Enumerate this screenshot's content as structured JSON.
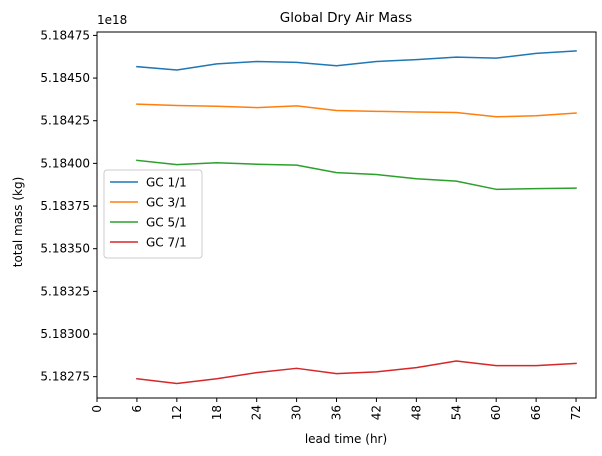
{
  "chart_data": {
    "type": "line",
    "title": "Global Dry Air Mass",
    "xlabel": "lead time (hr)",
    "ylabel": "total mass (kg)",
    "y_offset_label": "1e18",
    "x_ticks": [
      "0",
      "6",
      "12",
      "18",
      "24",
      "30",
      "36",
      "42",
      "48",
      "54",
      "60",
      "66",
      "72"
    ],
    "y_ticks": [
      "5.18275",
      "5.18300",
      "5.18325",
      "5.18350",
      "5.18375",
      "5.18400",
      "5.18425",
      "5.18450",
      "5.18475"
    ],
    "xlim": [
      0,
      75
    ],
    "ylim": [
      5.182625,
      5.18477
    ],
    "x": [
      6,
      12,
      18,
      24,
      30,
      36,
      42,
      48,
      54,
      60,
      66,
      72
    ],
    "series": [
      {
        "name": "GC 1/1",
        "color": "#1f77b4",
        "values": [
          5.184567,
          5.184547,
          5.184583,
          5.184597,
          5.184592,
          5.184572,
          5.184597,
          5.184608,
          5.184623,
          5.184617,
          5.184645,
          5.184659
        ]
      },
      {
        "name": "GC 3/1",
        "color": "#ff7f0e",
        "values": [
          5.184347,
          5.184339,
          5.184335,
          5.184327,
          5.184337,
          5.18431,
          5.184305,
          5.184301,
          5.184298,
          5.184273,
          5.184279,
          5.184295
        ]
      },
      {
        "name": "GC 5/1",
        "color": "#2ca02c",
        "values": [
          5.184018,
          5.183993,
          5.184004,
          5.183995,
          5.18399,
          5.183946,
          5.183935,
          5.18391,
          5.183896,
          5.183848,
          5.183852,
          5.183855
        ]
      },
      {
        "name": "GC 7/1",
        "color": "#d62728",
        "values": [
          5.182738,
          5.18271,
          5.182738,
          5.182774,
          5.182799,
          5.182768,
          5.182778,
          5.182803,
          5.182842,
          5.182815,
          5.182815,
          5.182828
        ]
      }
    ],
    "legend_position": "center-left",
    "grid": false
  }
}
